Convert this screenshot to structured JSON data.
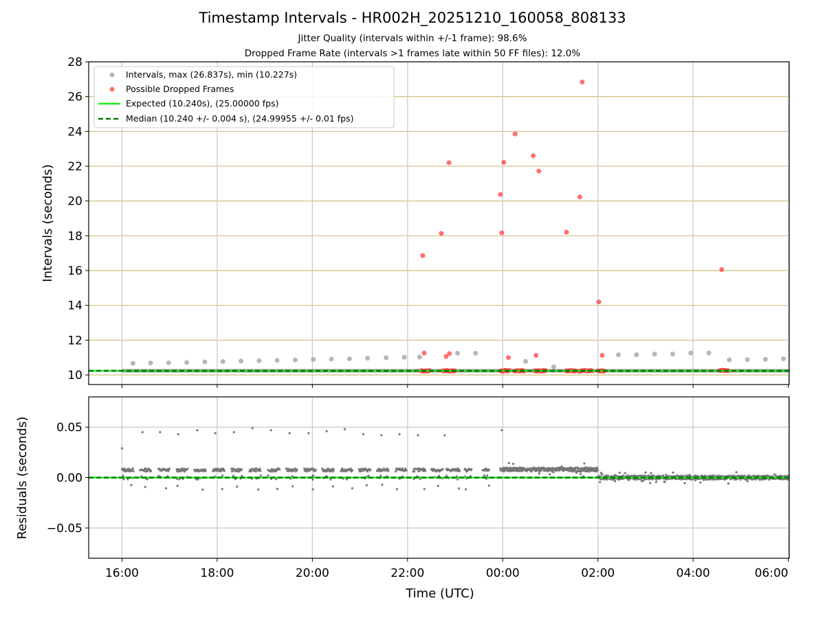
{
  "chart_data": [
    {
      "type": "scatter",
      "panel": "intervals",
      "title": "Timestamp Intervals - HR002H_20251210_160058_808133",
      "subtitle_1": "Jitter Quality (intervals within +/-1 frame): 98.6%",
      "subtitle_2": "Dropped Frame Rate (intervals >1 frames late within 50 FF files): 12.0%",
      "xlabel": "Time (UTC)",
      "ylabel": "Intervals (seconds)",
      "x_unit": "hours since 16:00 UTC",
      "xlim": [
        -0.7,
        14.02
      ],
      "ylim": [
        9.45,
        28
      ],
      "yticks": [
        10,
        12,
        14,
        16,
        18,
        20,
        22,
        24,
        26,
        28
      ],
      "ytick_labels": [
        "10",
        "12",
        "14",
        "16",
        "18",
        "20",
        "22",
        "24",
        "26",
        "28"
      ],
      "hgrid_values": [
        10,
        12,
        14,
        16,
        18,
        20,
        22,
        24,
        26,
        28
      ],
      "legend_position": "upper-left",
      "series": [
        {
          "name": "Intervals, max (26.837s), min (10.227s)",
          "color": "#999999",
          "marker": "circle",
          "points": [
            [
              0.23,
              10.67
            ],
            [
              0.6,
              10.69
            ],
            [
              0.98,
              10.7
            ],
            [
              1.36,
              10.72
            ],
            [
              1.74,
              10.75
            ],
            [
              2.12,
              10.77
            ],
            [
              2.5,
              10.8
            ],
            [
              2.88,
              10.82
            ],
            [
              3.26,
              10.84
            ],
            [
              3.64,
              10.86
            ],
            [
              4.02,
              10.89
            ],
            [
              4.4,
              10.91
            ],
            [
              4.78,
              10.93
            ],
            [
              5.16,
              10.96
            ],
            [
              5.55,
              10.99
            ],
            [
              5.93,
              11.02
            ],
            [
              6.25,
              11.03
            ],
            [
              7.05,
              11.25
            ],
            [
              7.43,
              11.25
            ],
            [
              8.48,
              10.78
            ],
            [
              9.07,
              10.46
            ],
            [
              10.43,
              11.16
            ],
            [
              10.81,
              11.16
            ],
            [
              11.19,
              11.2
            ],
            [
              11.57,
              11.2
            ],
            [
              11.95,
              11.26
            ],
            [
              12.33,
              11.26
            ],
            [
              12.76,
              10.87
            ],
            [
              13.14,
              10.88
            ],
            [
              13.52,
              10.9
            ],
            [
              13.9,
              10.93
            ]
          ],
          "band_xrange": [
            0,
            14.02
          ],
          "band_yrange": [
            10.14,
            10.34
          ]
        },
        {
          "name": "Possible Dropped Frames",
          "color": "#ff3333",
          "marker": "circle",
          "points": [
            [
              6.32,
              16.86
            ],
            [
              6.35,
              11.26
            ],
            [
              6.71,
              18.14
            ],
            [
              6.81,
              11.06
            ],
            [
              6.87,
              22.2
            ],
            [
              6.88,
              11.23
            ],
            [
              7.95,
              20.38
            ],
            [
              7.98,
              18.17
            ],
            [
              8.02,
              22.22
            ],
            [
              8.12,
              11.0
            ],
            [
              8.26,
              23.85
            ],
            [
              8.64,
              22.6
            ],
            [
              8.7,
              11.12
            ],
            [
              8.76,
              21.72
            ],
            [
              9.34,
              18.21
            ],
            [
              9.62,
              20.23
            ],
            [
              9.67,
              26.84
            ],
            [
              10.02,
              14.2
            ],
            [
              10.09,
              11.13
            ],
            [
              12.6,
              16.06
            ]
          ],
          "cluster_ranges": [
            [
              6.28,
              6.47
            ],
            [
              6.74,
              7.0
            ],
            [
              7.96,
              8.15
            ],
            [
              8.25,
              8.46
            ],
            [
              8.67,
              8.92
            ],
            [
              9.33,
              9.55
            ],
            [
              9.6,
              9.9
            ],
            [
              10.01,
              10.15
            ],
            [
              12.56,
              12.74
            ]
          ],
          "cluster_value": 10.24
        },
        {
          "name": "Expected (10.240s), (25.00000 fps)",
          "color": "#19f019",
          "style": "solid",
          "value": 10.24
        },
        {
          "name": "Median (10.240 +/- 0.004 s), (24.99955 +/- 0.01 fps)",
          "color": "#007700",
          "style": "dashed",
          "value": 10.24
        }
      ]
    },
    {
      "type": "scatter",
      "panel": "residuals",
      "xlabel": "Time (UTC)",
      "ylabel": "Residuals (seconds)",
      "x_unit": "hours since 16:00 UTC",
      "xlim": [
        -0.7,
        14.02
      ],
      "ylim": [
        -0.08,
        0.08
      ],
      "yticks": [
        -0.05,
        0.0,
        0.05
      ],
      "ytick_labels": [
        "−0.05",
        "0.00",
        "0.05"
      ],
      "xticks": [
        0,
        2,
        4,
        6,
        8,
        10,
        12,
        14
      ],
      "xtick_labels": [
        "16:00",
        "18:00",
        "20:00",
        "22:00",
        "00:00",
        "02:00",
        "04:00",
        "06:00"
      ],
      "series": [
        {
          "name": "Residuals",
          "color": "#777777",
          "outliers_high": [
            [
              0.0,
              0.029
            ],
            [
              0.43,
              0.045
            ],
            [
              0.8,
              0.045
            ],
            [
              1.18,
              0.043
            ],
            [
              1.58,
              0.047
            ],
            [
              1.96,
              0.044
            ],
            [
              2.35,
              0.045
            ],
            [
              2.74,
              0.049
            ],
            [
              3.13,
              0.047
            ],
            [
              3.52,
              0.044
            ],
            [
              3.92,
              0.044
            ],
            [
              4.3,
              0.046
            ],
            [
              4.68,
              0.048
            ],
            [
              5.07,
              0.043
            ],
            [
              5.45,
              0.042
            ],
            [
              5.83,
              0.043
            ],
            [
              6.22,
              0.042
            ],
            [
              6.78,
              0.042
            ],
            [
              7.98,
              0.047
            ]
          ],
          "segment_ranges": [
            [
              0.0,
              0.25
            ],
            [
              0.38,
              0.62
            ],
            [
              0.77,
              1.01
            ],
            [
              1.15,
              1.38
            ],
            [
              1.52,
              1.77
            ],
            [
              1.91,
              2.15
            ],
            [
              2.3,
              2.52
            ],
            [
              2.68,
              2.92
            ],
            [
              3.07,
              3.31
            ],
            [
              3.45,
              3.69
            ],
            [
              3.83,
              4.07
            ],
            [
              4.21,
              4.45
            ],
            [
              4.6,
              4.84
            ],
            [
              4.98,
              5.22
            ],
            [
              5.36,
              5.6
            ],
            [
              5.75,
              5.98
            ],
            [
              6.12,
              6.38
            ],
            [
              6.5,
              6.75
            ],
            [
              6.82,
              7.1
            ],
            [
              7.2,
              7.35
            ],
            [
              7.58,
              7.72
            ]
          ],
          "segment_band": [
            0.006,
            0.009
          ],
          "dense_range": [
            7.95,
            14.02
          ],
          "dense_levels": [
            [
              7.95,
              10.0,
              0.006,
              0.01
            ],
            [
              10.0,
              14.02,
              -0.002,
              0.002
            ]
          ]
        },
        {
          "name": "Expected",
          "color": "#19f019",
          "style": "solid",
          "value": 0.0
        },
        {
          "name": "Median",
          "color": "#007700",
          "style": "dashed",
          "value": 0.0
        }
      ]
    }
  ]
}
